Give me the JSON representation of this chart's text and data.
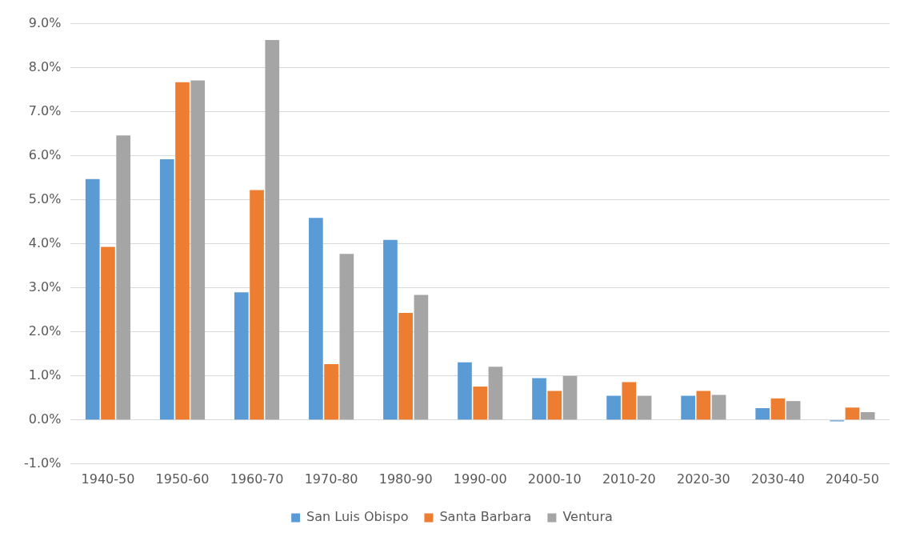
{
  "chart_data": {
    "type": "bar",
    "categories": [
      "1940-50",
      "1950-60",
      "1960-70",
      "1970-80",
      "1980-90",
      "1990-00",
      "2000-10",
      "2010-20",
      "2020-30",
      "2030-40",
      "2040-50"
    ],
    "series": [
      {
        "name": "San Luis Obispo",
        "color": "#5b9bd5",
        "values": [
          5.47,
          5.92,
          2.9,
          4.59,
          4.09,
          1.31,
          0.95,
          0.55,
          0.55,
          0.27,
          -0.03
        ]
      },
      {
        "name": "Santa Barbara",
        "color": "#ed7d31",
        "values": [
          3.93,
          7.67,
          5.22,
          1.27,
          2.43,
          0.76,
          0.66,
          0.86,
          0.66,
          0.49,
          0.28
        ]
      },
      {
        "name": "Ventura",
        "color": "#a5a5a5",
        "values": [
          6.46,
          7.71,
          8.63,
          3.77,
          2.84,
          1.21,
          1.0,
          0.55,
          0.57,
          0.43,
          0.18
        ]
      }
    ],
    "ylim": [
      -1,
      9
    ],
    "yticks": [
      {
        "value": -1,
        "label": "-1.0%"
      },
      {
        "value": 0,
        "label": "0.0%"
      },
      {
        "value": 1,
        "label": "1.0%"
      },
      {
        "value": 2,
        "label": "2.0%"
      },
      {
        "value": 3,
        "label": "3.0%"
      },
      {
        "value": 4,
        "label": "4.0%"
      },
      {
        "value": 5,
        "label": "5.0%"
      },
      {
        "value": 6,
        "label": "6.0%"
      },
      {
        "value": 7,
        "label": "7.0%"
      },
      {
        "value": 8,
        "label": "8.0%"
      },
      {
        "value": 9,
        "label": "9.0%"
      }
    ],
    "grid": "y",
    "legend": "bottom"
  }
}
